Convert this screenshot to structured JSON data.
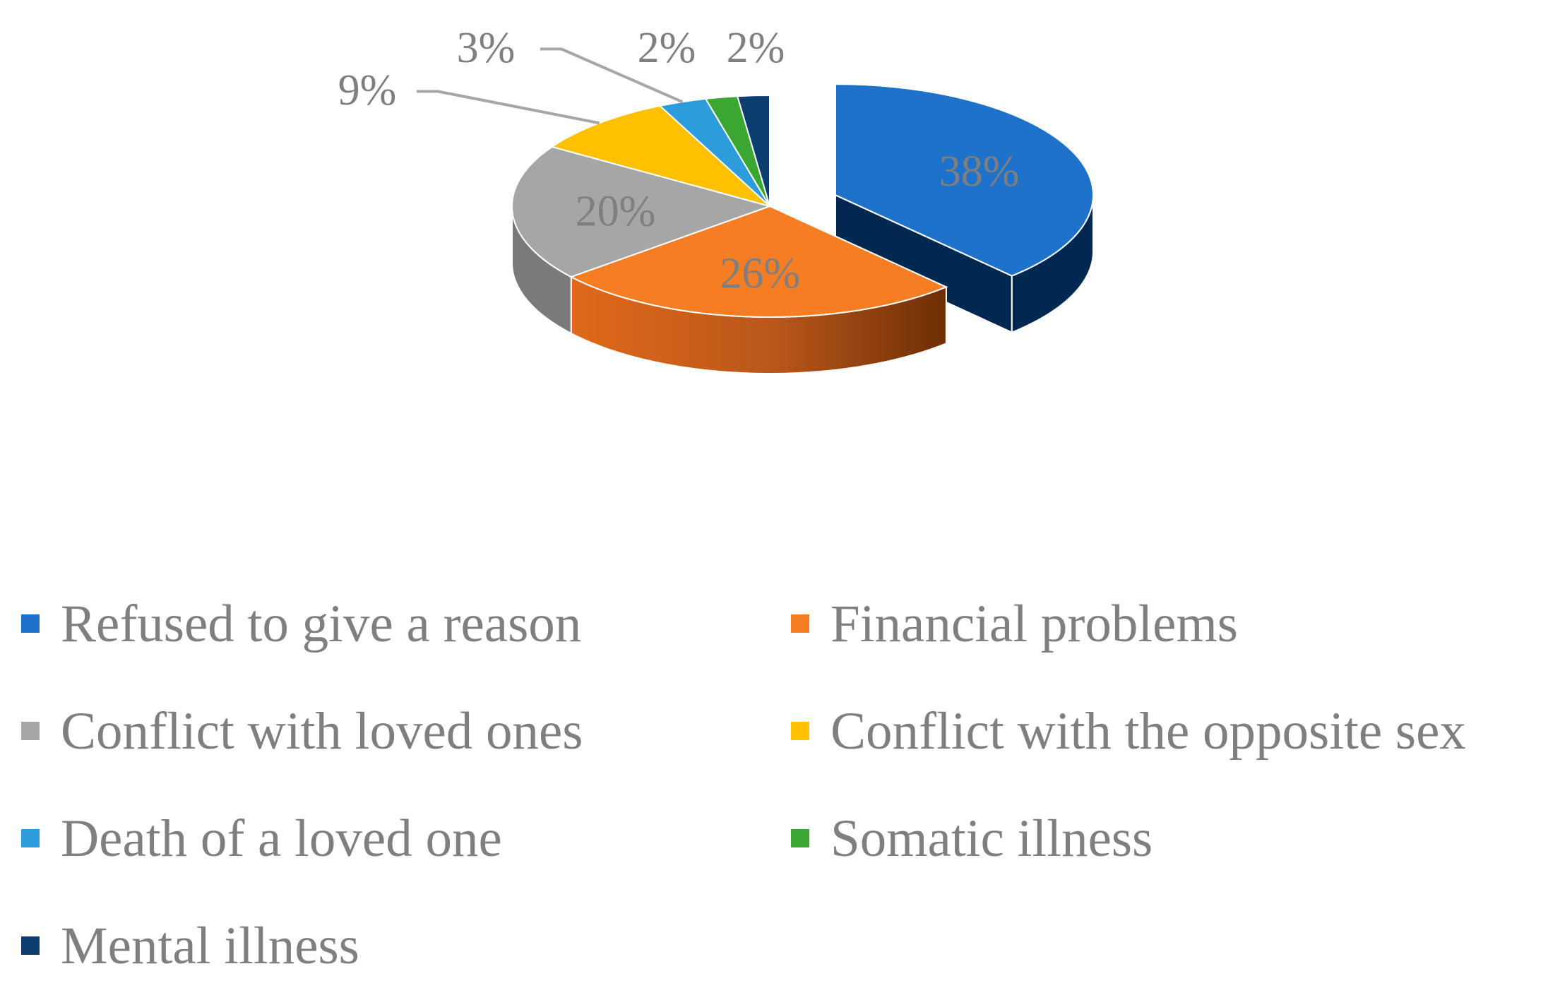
{
  "chart_data": {
    "type": "pie",
    "style": "3d-exploded",
    "series": [
      {
        "name": "Refused to give a reason",
        "value": 38,
        "label": "38%",
        "color": "#1F72C9",
        "side_color": "#002850"
      },
      {
        "name": "Financial problems",
        "value": 26,
        "label": "26%",
        "color": "#F57E25",
        "side_color": "#B0561A"
      },
      {
        "name": "Conflict with loved ones",
        "value": 20,
        "label": "20%",
        "color": "#A6A6A6",
        "side_color": "#7A7A7A"
      },
      {
        "name": "Conflict with the opposite sex",
        "value": 9,
        "label": "9%",
        "color": "#FFC000",
        "side_color": "#C29100"
      },
      {
        "name": "Death of a loved one",
        "value": 3,
        "label": "3%",
        "color": "#2D9CDB",
        "side_color": "#1E6F9E"
      },
      {
        "name": "Somatic illness",
        "value": 2,
        "label": "2%",
        "color": "#3CA632",
        "side_color": "#2A7523"
      },
      {
        "name": "Mental illness",
        "value": 2,
        "label": "2%",
        "color": "#0B3D6E",
        "side_color": "#072846"
      }
    ],
    "exploded_slice": "Refused to give a reason",
    "legend_position": "bottom",
    "title": ""
  },
  "colors": {
    "label_text": "#7f7f7f",
    "leader_line": "#a6a6a6"
  }
}
